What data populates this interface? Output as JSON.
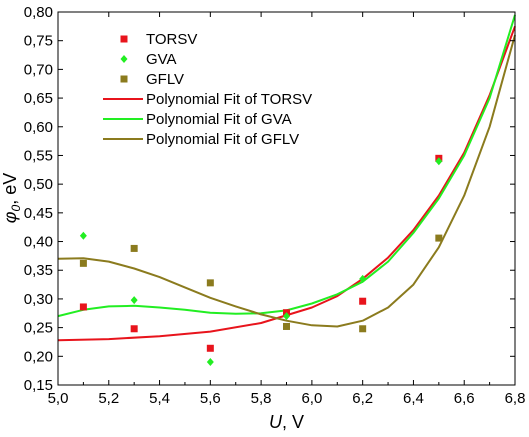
{
  "chart_data": {
    "type": "scatter",
    "title": "",
    "xlabel": {
      "main": "U",
      "unit": ", V"
    },
    "ylabel": {
      "main": "φ",
      "sub": "0",
      "unit": ", eV"
    },
    "xlim": [
      5.0,
      6.8
    ],
    "ylim": [
      0.15,
      0.8
    ],
    "x_ticks": [
      "5,0",
      "5,2",
      "5,4",
      "5,6",
      "5,8",
      "6,0",
      "6,2",
      "6,4",
      "6,6",
      "6,8"
    ],
    "y_ticks": [
      "0,15",
      "0,20",
      "0,25",
      "0,30",
      "0,35",
      "0,40",
      "0,45",
      "0,50",
      "0,55",
      "0,60",
      "0,65",
      "0,70",
      "0,75",
      "0,80"
    ],
    "grid": false,
    "legend_position": "top-left",
    "series": [
      {
        "name": "TORSV",
        "kind": "points",
        "marker": "square",
        "color": "#e8141c",
        "x": [
          5.1,
          5.3,
          5.6,
          5.9,
          6.2,
          6.5
        ],
        "y": [
          0.286,
          0.248,
          0.214,
          0.276,
          0.296,
          0.545
        ]
      },
      {
        "name": "GVA",
        "kind": "points",
        "marker": "diamond",
        "color": "#22ee22",
        "x": [
          5.1,
          5.3,
          5.6,
          5.9,
          6.2,
          6.5
        ],
        "y": [
          0.41,
          0.298,
          0.19,
          0.27,
          0.335,
          0.54
        ]
      },
      {
        "name": "GFLV",
        "kind": "points",
        "marker": "square",
        "color": "#8b7b1e",
        "x": [
          5.1,
          5.3,
          5.6,
          5.9,
          6.2,
          6.5
        ],
        "y": [
          0.362,
          0.388,
          0.328,
          0.252,
          0.248,
          0.406
        ]
      },
      {
        "name": "Polynomial Fit of TORSV",
        "kind": "line",
        "color": "#e8141c",
        "x": [
          5.0,
          5.2,
          5.4,
          5.6,
          5.8,
          6.0,
          6.1,
          6.2,
          6.3,
          6.4,
          6.5,
          6.6,
          6.7,
          6.8
        ],
        "y": [
          0.228,
          0.23,
          0.235,
          0.243,
          0.258,
          0.285,
          0.305,
          0.335,
          0.372,
          0.42,
          0.48,
          0.555,
          0.655,
          0.775
        ]
      },
      {
        "name": "Polynomial Fit of GVA",
        "kind": "line",
        "color": "#22ee22",
        "x": [
          5.0,
          5.1,
          5.2,
          5.3,
          5.4,
          5.5,
          5.6,
          5.7,
          5.8,
          5.9,
          6.0,
          6.1,
          6.2,
          6.3,
          6.4,
          6.5,
          6.6,
          6.7,
          6.8
        ],
        "y": [
          0.27,
          0.281,
          0.287,
          0.288,
          0.285,
          0.281,
          0.276,
          0.274,
          0.275,
          0.28,
          0.292,
          0.308,
          0.33,
          0.365,
          0.415,
          0.475,
          0.55,
          0.65,
          0.795
        ]
      },
      {
        "name": "Polynomial Fit of GFLV",
        "kind": "line",
        "color": "#8b7b1e",
        "x": [
          5.0,
          5.1,
          5.2,
          5.3,
          5.4,
          5.5,
          5.6,
          5.7,
          5.8,
          5.9,
          6.0,
          6.1,
          6.2,
          6.3,
          6.4,
          6.5,
          6.6,
          6.7,
          6.8
        ],
        "y": [
          0.37,
          0.371,
          0.365,
          0.353,
          0.338,
          0.32,
          0.302,
          0.287,
          0.273,
          0.262,
          0.254,
          0.252,
          0.262,
          0.285,
          0.325,
          0.39,
          0.48,
          0.6,
          0.76
        ]
      }
    ]
  }
}
